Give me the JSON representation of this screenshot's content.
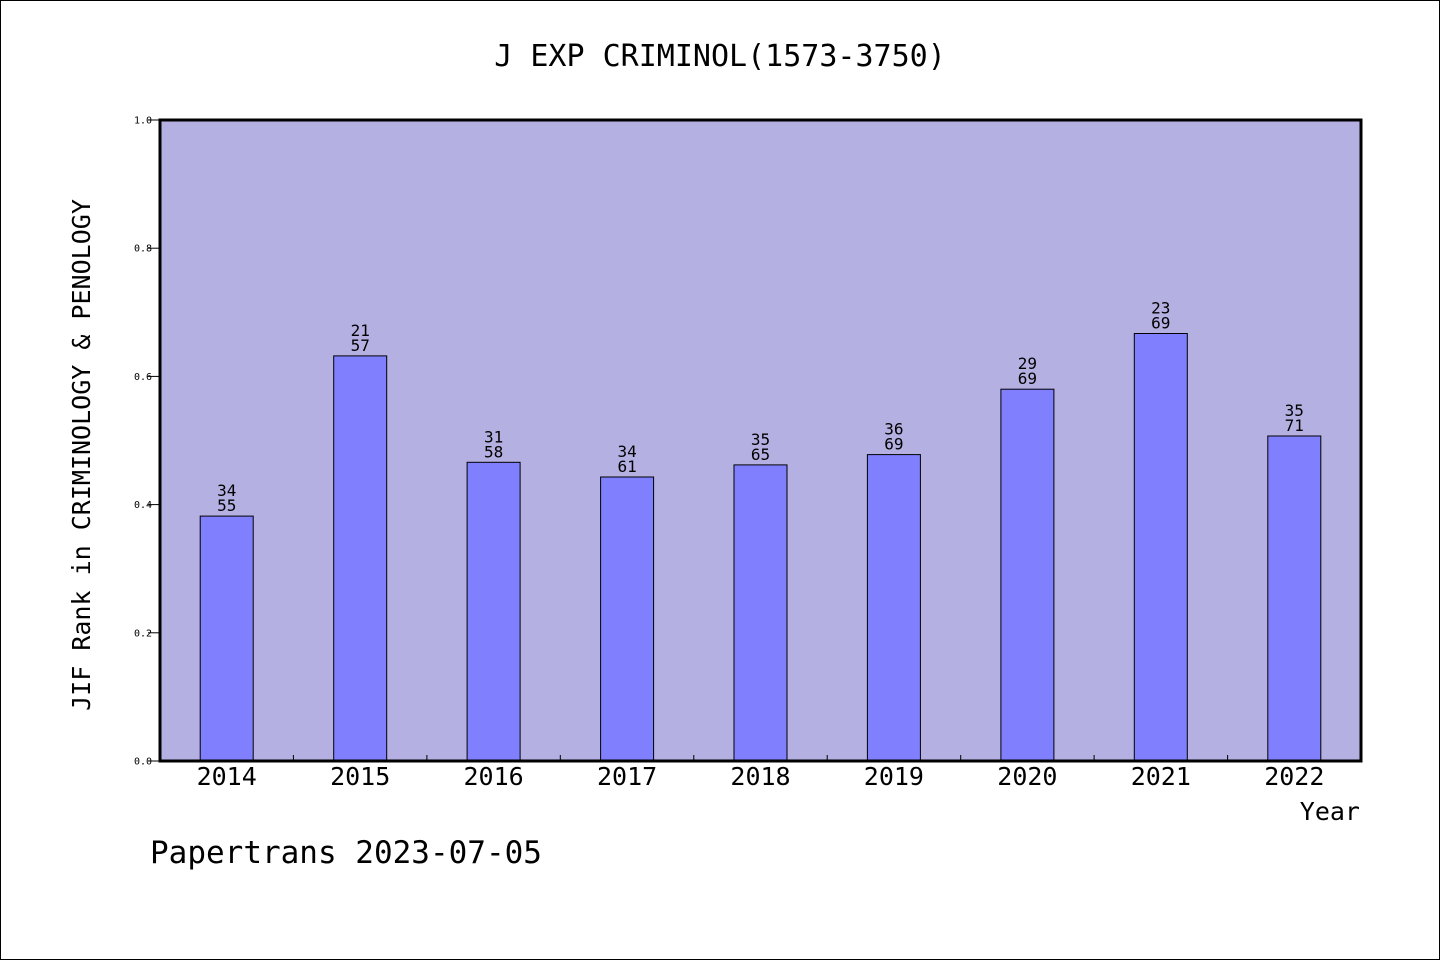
{
  "chart_data": {
    "type": "bar",
    "title": "J EXP CRIMINOL(1573-3750)",
    "xlabel": "Year",
    "ylabel": "JIF Rank in CRIMINOLOGY & PENOLOGY",
    "ylim": [
      0.0,
      1.0
    ],
    "yticks": [
      "0.0",
      "0.2",
      "0.4",
      "0.6",
      "0.8",
      "1.0"
    ],
    "categories": [
      "2014",
      "2015",
      "2016",
      "2017",
      "2018",
      "2019",
      "2020",
      "2021",
      "2022"
    ],
    "values": [
      0.382,
      0.632,
      0.466,
      0.443,
      0.462,
      0.478,
      0.58,
      0.667,
      0.507
    ],
    "labels_top": [
      "34",
      "21",
      "31",
      "34",
      "35",
      "36",
      "29",
      "23",
      "35"
    ],
    "labels_bottom": [
      "55",
      "57",
      "58",
      "61",
      "65",
      "69",
      "69",
      "69",
      "71"
    ],
    "grid": false,
    "colors": {
      "plot_background": "#b5b0e2",
      "bar_fill": "#8080ff",
      "bar_stroke": "#000000"
    }
  },
  "footer": {
    "source_text": "Papertrans 2023-07-05"
  }
}
